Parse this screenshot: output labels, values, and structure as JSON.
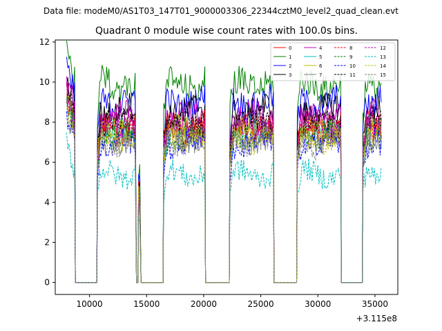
{
  "chart_data": {
    "type": "line",
    "suptitle": "Data file: modeM0/AS1T03_147T01_9000003306_22344cztM0_level2_quad_clean.evt",
    "title": "Quadrant 0 module wise count rates with 100.0s bins.",
    "xlabel": "",
    "ylabel": "",
    "x_offset_label": "+3.115e8",
    "xlim": [
      7000,
      37000
    ],
    "ylim": [
      -0.6,
      12.1
    ],
    "xticks": [
      10000,
      15000,
      20000,
      25000,
      30000,
      35000
    ],
    "xtick_labels": [
      "10000",
      "15000",
      "20000",
      "25000",
      "30000",
      "35000"
    ],
    "yticks": [
      0,
      2,
      4,
      6,
      8,
      10,
      12
    ],
    "ytick_labels": [
      "0",
      "2",
      "4",
      "6",
      "8",
      "10",
      "12"
    ],
    "legend_location": "upper-right",
    "segments": [
      [
        8000,
        8700
      ],
      [
        10700,
        14050
      ],
      [
        14300,
        14450
      ],
      [
        16500,
        20100
      ],
      [
        22300,
        26100
      ],
      [
        28200,
        32000
      ],
      [
        33950,
        35600
      ]
    ],
    "gap_floor": 0.0,
    "series": [
      {
        "name": "0",
        "color": "#ff0000",
        "dash": "solid",
        "level": 7.9
      },
      {
        "name": "1",
        "color": "#008000",
        "dash": "solid",
        "level": 9.9
      },
      {
        "name": "2",
        "color": "#0000ff",
        "dash": "solid",
        "level": 9.0
      },
      {
        "name": "3",
        "color": "#000000",
        "dash": "solid",
        "level": 8.6
      },
      {
        "name": "4",
        "color": "#bf00bf",
        "dash": "solid",
        "level": 8.3
      },
      {
        "name": "5",
        "color": "#00bfbf",
        "dash": "solid",
        "level": 7.5
      },
      {
        "name": "6",
        "color": "#bfbf00",
        "dash": "solid",
        "level": 7.6
      },
      {
        "name": "7",
        "color": "#808080",
        "dash": "solid",
        "level": 7.3
      },
      {
        "name": "8",
        "color": "#ff0000",
        "dash": "dashed",
        "level": 7.7
      },
      {
        "name": "9",
        "color": "#008000",
        "dash": "dashed",
        "level": 7.4
      },
      {
        "name": "10",
        "color": "#0000ff",
        "dash": "dashed",
        "level": 6.9
      },
      {
        "name": "11",
        "color": "#000000",
        "dash": "dashed",
        "level": 8.0
      },
      {
        "name": "12",
        "color": "#bf00bf",
        "dash": "dashed",
        "level": 7.8
      },
      {
        "name": "13",
        "color": "#00bfbf",
        "dash": "dashed",
        "level": 5.4
      },
      {
        "name": "14",
        "color": "#bfbf00",
        "dash": "dashed",
        "level": 7.2
      },
      {
        "name": "15",
        "color": "#808080",
        "dash": "dashed",
        "level": 7.0
      }
    ]
  }
}
